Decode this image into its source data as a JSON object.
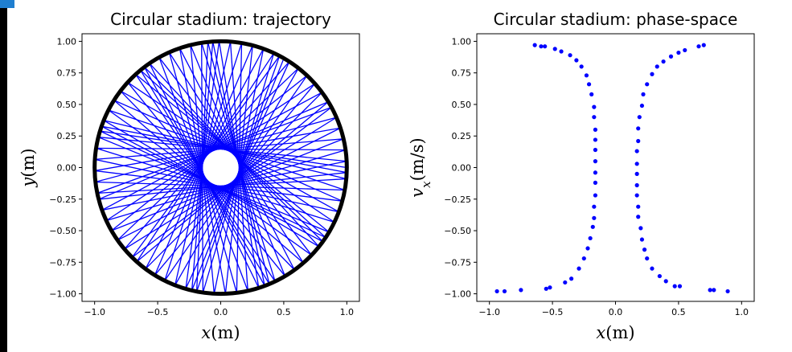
{
  "chart_data": [
    {
      "type": "line",
      "title": "Circular stadium: trajectory",
      "xlabel": "x(m)",
      "ylabel": "y(m)",
      "xlim": [
        -1.1,
        1.1
      ],
      "ylim": [
        -1.06,
        1.06
      ],
      "xticks": [
        "−1.0",
        "−0.5",
        "0.0",
        "0.5",
        "1.0"
      ],
      "xtick_values": [
        -1.0,
        -0.5,
        0.0,
        0.5,
        1.0
      ],
      "yticks": [
        "1.00",
        "0.75",
        "0.50",
        "0.25",
        "0.00",
        "−0.25",
        "−0.50",
        "−0.75",
        "−1.00"
      ],
      "ytick_values": [
        1.0,
        0.75,
        0.5,
        0.25,
        0.0,
        -0.25,
        -0.5,
        -0.75,
        -1.0
      ],
      "boundary_radius": 1.0,
      "boundary_color": "#000000",
      "trajectory_color": "#0000ff",
      "trajectory": {
        "chord_angle_step_deg": 163.17,
        "bounces": 82,
        "start_angle_deg": 0
      }
    },
    {
      "type": "scatter",
      "title": "Circular stadium: phase-space",
      "xlabel": "x(m)",
      "ylabel": "v_x(m/s)",
      "xlim": [
        -1.1,
        1.1
      ],
      "ylim": [
        -1.06,
        1.06
      ],
      "xticks": [
        "−1.0",
        "−0.5",
        "0.0",
        "0.5",
        "1.0"
      ],
      "xtick_values": [
        -1.0,
        -0.5,
        0.0,
        0.5,
        1.0
      ],
      "yticks": [
        "1.00",
        "0.75",
        "0.50",
        "0.25",
        "0.00",
        "−0.25",
        "−0.50",
        "−0.75",
        "−1.00"
      ],
      "ytick_values": [
        1.0,
        0.75,
        0.5,
        0.25,
        0.0,
        -0.25,
        -0.5,
        -0.75,
        -1.0
      ],
      "point_color": "#0000ff",
      "points": [
        [
          -0.64,
          0.97
        ],
        [
          -0.59,
          0.96
        ],
        [
          -0.56,
          0.96
        ],
        [
          -0.48,
          0.94
        ],
        [
          -0.43,
          0.92
        ],
        [
          -0.36,
          0.89
        ],
        [
          -0.31,
          0.85
        ],
        [
          -0.27,
          0.8
        ],
        [
          -0.23,
          0.73
        ],
        [
          -0.21,
          0.66
        ],
        [
          -0.19,
          0.58
        ],
        [
          -0.17,
          0.48
        ],
        [
          -0.17,
          0.4
        ],
        [
          -0.16,
          0.3
        ],
        [
          -0.16,
          0.22
        ],
        [
          -0.16,
          0.14
        ],
        [
          -0.16,
          0.05
        ],
        [
          -0.16,
          -0.04
        ],
        [
          -0.16,
          -0.12
        ],
        [
          -0.16,
          -0.22
        ],
        [
          -0.17,
          -0.31
        ],
        [
          -0.17,
          -0.4
        ],
        [
          -0.18,
          -0.47
        ],
        [
          -0.2,
          -0.56
        ],
        [
          -0.22,
          -0.64
        ],
        [
          -0.25,
          -0.72
        ],
        [
          -0.29,
          -0.8
        ],
        [
          -0.35,
          -0.88
        ],
        [
          -0.4,
          -0.91
        ],
        [
          -0.52,
          -0.95
        ],
        [
          -0.55,
          -0.96
        ],
        [
          -0.75,
          -0.97
        ],
        [
          -0.88,
          -0.98
        ],
        [
          -0.94,
          -0.98
        ],
        [
          0.7,
          0.97
        ],
        [
          0.66,
          0.96
        ],
        [
          0.55,
          0.93
        ],
        [
          0.5,
          0.91
        ],
        [
          0.44,
          0.88
        ],
        [
          0.38,
          0.84
        ],
        [
          0.33,
          0.8
        ],
        [
          0.29,
          0.74
        ],
        [
          0.25,
          0.66
        ],
        [
          0.22,
          0.58
        ],
        [
          0.21,
          0.49
        ],
        [
          0.19,
          0.4
        ],
        [
          0.18,
          0.31
        ],
        [
          0.18,
          0.21
        ],
        [
          0.17,
          0.13
        ],
        [
          0.17,
          0.03
        ],
        [
          0.17,
          -0.05
        ],
        [
          0.17,
          -0.14
        ],
        [
          0.17,
          -0.22
        ],
        [
          0.18,
          -0.31
        ],
        [
          0.18,
          -0.39
        ],
        [
          0.2,
          -0.48
        ],
        [
          0.21,
          -0.57
        ],
        [
          0.23,
          -0.65
        ],
        [
          0.25,
          -0.72
        ],
        [
          0.29,
          -0.8
        ],
        [
          0.35,
          -0.86
        ],
        [
          0.4,
          -0.9
        ],
        [
          0.47,
          -0.94
        ],
        [
          0.51,
          -0.94
        ],
        [
          0.75,
          -0.97
        ],
        [
          0.78,
          -0.97
        ],
        [
          0.89,
          -0.98
        ]
      ]
    }
  ]
}
